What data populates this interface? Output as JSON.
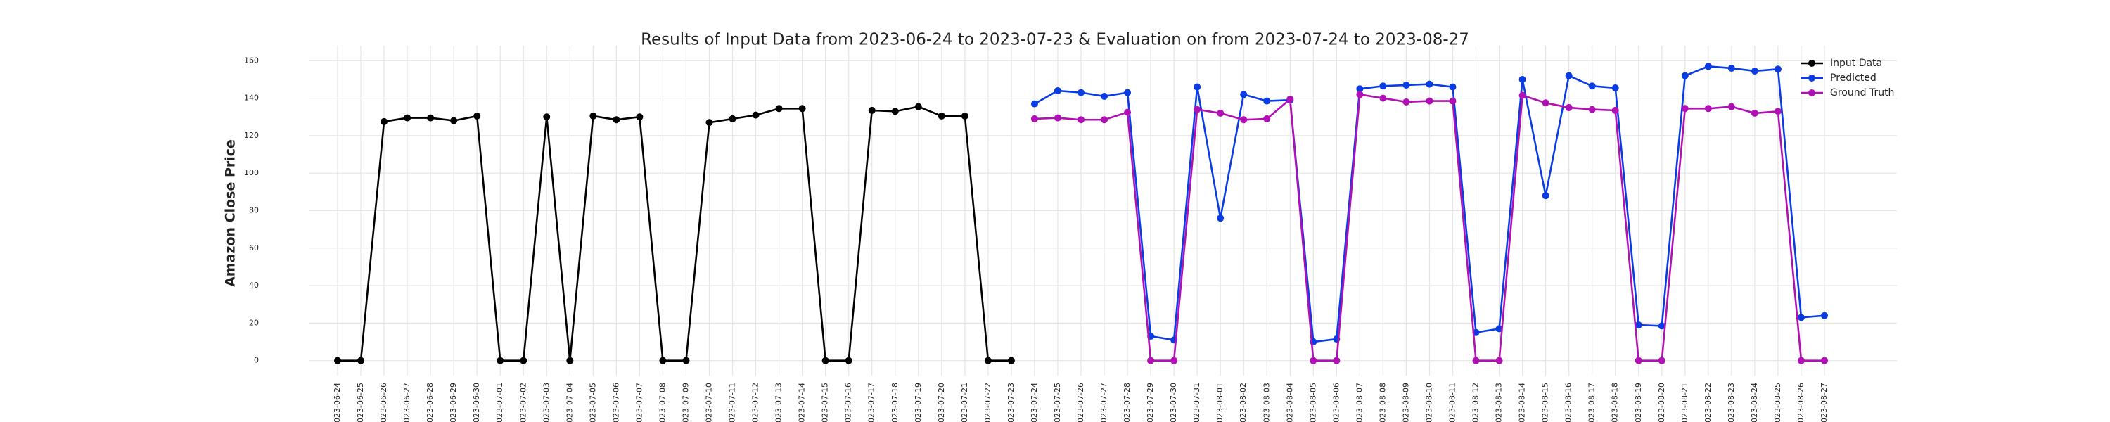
{
  "chart_data": {
    "type": "line",
    "title": "Results of Input Data from 2023-06-24 to 2023-07-23 & Evaluation on from 2023-07-24 to 2023-08-27",
    "ylabel": "Amazon Close Price",
    "x": [
      "2023-06-24",
      "2023-06-25",
      "2023-06-26",
      "2023-06-27",
      "2023-06-28",
      "2023-06-29",
      "2023-06-30",
      "2023-07-01",
      "2023-07-02",
      "2023-07-03",
      "2023-07-04",
      "2023-07-05",
      "2023-07-06",
      "2023-07-07",
      "2023-07-08",
      "2023-07-09",
      "2023-07-10",
      "2023-07-11",
      "2023-07-12",
      "2023-07-13",
      "2023-07-14",
      "2023-07-15",
      "2023-07-16",
      "2023-07-17",
      "2023-07-18",
      "2023-07-19",
      "2023-07-20",
      "2023-07-21",
      "2023-07-22",
      "2023-07-23",
      "2023-07-24",
      "2023-07-25",
      "2023-07-26",
      "2023-07-27",
      "2023-07-28",
      "2023-07-29",
      "2023-07-30",
      "2023-07-31",
      "2023-08-01",
      "2023-08-02",
      "2023-08-03",
      "2023-08-04",
      "2023-08-05",
      "2023-08-06",
      "2023-08-07",
      "2023-08-08",
      "2023-08-09",
      "2023-08-10",
      "2023-08-11",
      "2023-08-12",
      "2023-08-13",
      "2023-08-14",
      "2023-08-15",
      "2023-08-16",
      "2023-08-17",
      "2023-08-18",
      "2023-08-19",
      "2023-08-20",
      "2023-08-21",
      "2023-08-22",
      "2023-08-23",
      "2023-08-24",
      "2023-08-25",
      "2023-08-26",
      "2023-08-27"
    ],
    "series": [
      {
        "name": "Input Data",
        "color": "#000000",
        "values": [
          0,
          0,
          127.5,
          129.5,
          129.5,
          128,
          130.5,
          0,
          0,
          130,
          0,
          130.5,
          128.5,
          130,
          0,
          0,
          127,
          129,
          131,
          134.5,
          134.5,
          0,
          0,
          133.5,
          133,
          135.5,
          130.5,
          130.5,
          0,
          0,
          null,
          null,
          null,
          null,
          null,
          null,
          null,
          null,
          null,
          null,
          null,
          null,
          null,
          null,
          null,
          null,
          null,
          null,
          null,
          null,
          null,
          null,
          null,
          null,
          null,
          null,
          null,
          null,
          null,
          null,
          null,
          null,
          null,
          null,
          null
        ]
      },
      {
        "name": "Predicted",
        "color": "#0a3ce6",
        "values": [
          null,
          null,
          null,
          null,
          null,
          null,
          null,
          null,
          null,
          null,
          null,
          null,
          null,
          null,
          null,
          null,
          null,
          null,
          null,
          null,
          null,
          null,
          null,
          null,
          null,
          null,
          null,
          null,
          null,
          null,
          137,
          144,
          143,
          141,
          143,
          13,
          11,
          146,
          76,
          142,
          138.5,
          139,
          10,
          11.5,
          145,
          146.5,
          147,
          147.5,
          146,
          15,
          17,
          150,
          88,
          152,
          146.5,
          145.5,
          19,
          18.5,
          152,
          157,
          156,
          154.5,
          155.5,
          23,
          24
        ]
      },
      {
        "name": "Ground Truth",
        "color": "#b010b4",
        "values": [
          null,
          null,
          null,
          null,
          null,
          null,
          null,
          null,
          null,
          null,
          null,
          null,
          null,
          null,
          null,
          null,
          null,
          null,
          null,
          null,
          null,
          null,
          null,
          null,
          null,
          null,
          null,
          null,
          null,
          null,
          129,
          129.5,
          128.5,
          128.5,
          132.5,
          0,
          0,
          134,
          132,
          128.5,
          129,
          139.5,
          0,
          0,
          142,
          140,
          138,
          138.5,
          138.5,
          0,
          0,
          141.5,
          137.5,
          135,
          134,
          133.5,
          0,
          0,
          134.5,
          134.5,
          135.5,
          132,
          133,
          0,
          0
        ]
      }
    ],
    "ylim": [
      -8,
      168
    ],
    "yticks": [
      0,
      20,
      40,
      60,
      80,
      100,
      120,
      140,
      160
    ],
    "grid": true,
    "legend": "upper right"
  }
}
